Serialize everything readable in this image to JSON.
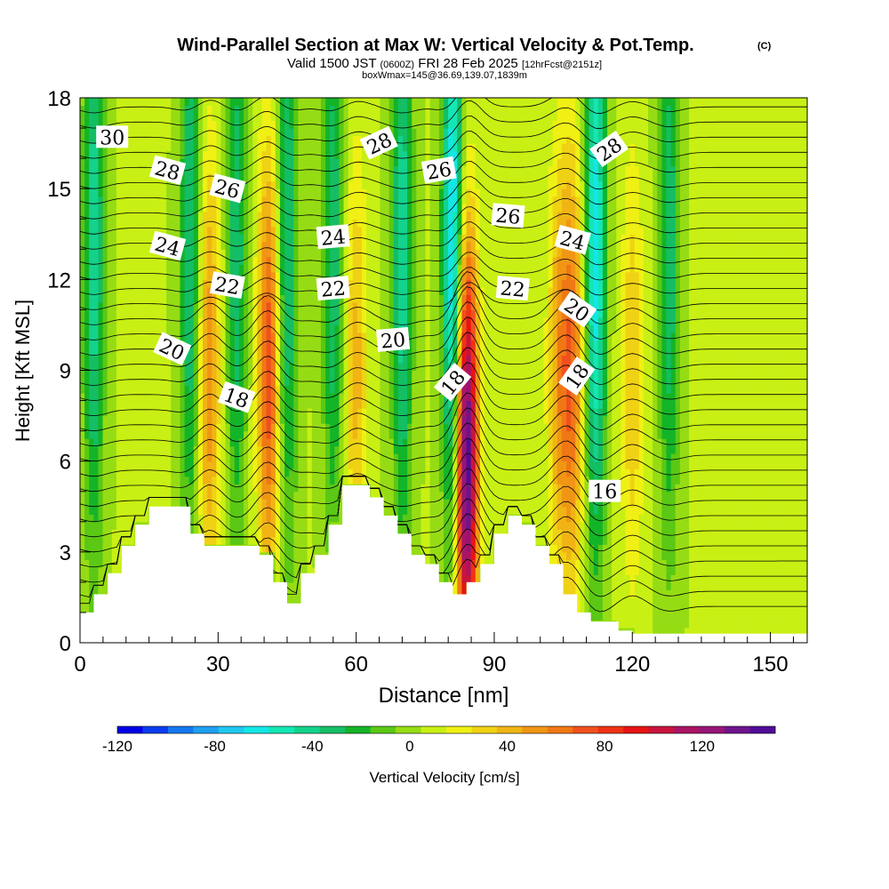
{
  "chart_data": {
    "type": "heatmap",
    "title": "Wind-Parallel Section at Max W: Vertical Velocity & Pot.Temp.",
    "title_mark": "(C)",
    "subtitle": {
      "prefix": "Valid 1500 JST",
      "utc": "(0600Z)",
      "date": "FRI 28 Feb 2025",
      "run": "[12hrFcst@2151z]"
    },
    "subtitle2": "boxWmax=145@36.69,139.07,1839m",
    "xlabel": "Distance [nm]",
    "ylabel": "Height [Kft MSL]",
    "xlim": [
      0,
      158
    ],
    "ylim": [
      0,
      18
    ],
    "x_ticks": [
      0,
      30,
      60,
      90,
      120,
      150
    ],
    "y_ticks": [
      0,
      3,
      6,
      9,
      12,
      15,
      18
    ],
    "colorbar": {
      "label": "Vertical Velocity [cm/s]",
      "range": [
        -120,
        150
      ],
      "tick_values": [
        -120,
        -80,
        -40,
        0,
        40,
        80,
        120
      ],
      "colors": [
        "#0000e6",
        "#0a3cf0",
        "#1478f0",
        "#1ea0f0",
        "#1ec8f0",
        "#14e6e6",
        "#14e6b4",
        "#14d28c",
        "#14be64",
        "#14b428",
        "#5ac814",
        "#96dc14",
        "#c8f014",
        "#f0f014",
        "#f0d214",
        "#f0b414",
        "#f09614",
        "#f07814",
        "#f0501e",
        "#f03214",
        "#e61414",
        "#c8143c",
        "#aa1464",
        "#961478",
        "#6e148c",
        "#500c96"
      ]
    },
    "updrafts": [
      {
        "x": 28,
        "peak_cm_s": 50
      },
      {
        "x": 41,
        "peak_cm_s": 70
      },
      {
        "x": 60,
        "peak_cm_s": 35
      },
      {
        "x": 84,
        "peak_cm_s": 145
      },
      {
        "x": 104,
        "peak_cm_s": 40
      },
      {
        "x": 107,
        "peak_cm_s": 55
      },
      {
        "x": 120,
        "peak_cm_s": 30
      }
    ],
    "downdrafts": [
      {
        "x": 3,
        "peak_cm_s": -50
      },
      {
        "x": 24,
        "peak_cm_s": -45
      },
      {
        "x": 34,
        "peak_cm_s": -40
      },
      {
        "x": 45,
        "peak_cm_s": -45
      },
      {
        "x": 55,
        "peak_cm_s": -40
      },
      {
        "x": 70,
        "peak_cm_s": -50
      },
      {
        "x": 81,
        "peak_cm_s": -80
      },
      {
        "x": 112,
        "peak_cm_s": -70
      },
      {
        "x": 128,
        "peak_cm_s": -40
      }
    ],
    "terrain": [
      [
        0,
        1
      ],
      [
        3,
        1
      ],
      [
        3,
        1.6
      ],
      [
        6,
        1.6
      ],
      [
        6,
        2.3
      ],
      [
        9,
        2.3
      ],
      [
        9,
        3.2
      ],
      [
        12,
        3.2
      ],
      [
        12,
        3.9
      ],
      [
        15,
        3.9
      ],
      [
        15,
        4.5
      ],
      [
        24,
        4.5
      ],
      [
        24,
        3.6
      ],
      [
        27,
        3.6
      ],
      [
        27,
        3.2
      ],
      [
        39,
        3.2
      ],
      [
        39,
        2.9
      ],
      [
        42,
        2.9
      ],
      [
        42,
        2
      ],
      [
        45,
        2
      ],
      [
        45,
        1.3
      ],
      [
        48,
        1.3
      ],
      [
        48,
        2.3
      ],
      [
        51,
        2.3
      ],
      [
        51,
        2.9
      ],
      [
        54,
        2.9
      ],
      [
        54,
        3.9
      ],
      [
        57,
        3.9
      ],
      [
        57,
        5.2
      ],
      [
        63,
        5.2
      ],
      [
        63,
        4.8
      ],
      [
        66,
        4.8
      ],
      [
        66,
        4.2
      ],
      [
        69,
        4.2
      ],
      [
        69,
        3.6
      ],
      [
        72,
        3.6
      ],
      [
        72,
        2.9
      ],
      [
        75,
        2.9
      ],
      [
        75,
        2.6
      ],
      [
        78,
        2.6
      ],
      [
        78,
        2
      ],
      [
        81,
        2
      ],
      [
        81,
        1.6
      ],
      [
        84,
        1.6
      ],
      [
        84,
        2
      ],
      [
        87,
        2
      ],
      [
        87,
        2.6
      ],
      [
        90,
        2.6
      ],
      [
        90,
        3.6
      ],
      [
        93,
        3.6
      ],
      [
        93,
        4.2
      ],
      [
        96,
        4.2
      ],
      [
        96,
        3.9
      ],
      [
        99,
        3.9
      ],
      [
        99,
        3.2
      ],
      [
        102,
        3.2
      ],
      [
        102,
        2.6
      ],
      [
        105,
        2.6
      ],
      [
        105,
        1.6
      ],
      [
        108,
        1.6
      ],
      [
        108,
        1
      ],
      [
        111,
        1
      ],
      [
        111,
        0.7
      ],
      [
        117,
        0.7
      ],
      [
        117,
        0.4
      ],
      [
        120,
        0.4
      ],
      [
        120,
        0.3
      ],
      [
        158,
        0.3
      ]
    ],
    "contour_labels": [
      {
        "text": "30",
        "x": 7,
        "y": 16.7,
        "angle": 0
      },
      {
        "text": "28",
        "x": 19,
        "y": 15.6,
        "angle": 15
      },
      {
        "text": "26",
        "x": 32,
        "y": 15.0,
        "angle": 15
      },
      {
        "text": "24",
        "x": 19,
        "y": 13.1,
        "angle": 15
      },
      {
        "text": "22",
        "x": 32,
        "y": 11.8,
        "angle": 10
      },
      {
        "text": "20",
        "x": 20,
        "y": 9.7,
        "angle": 25
      },
      {
        "text": "18",
        "x": 34,
        "y": 8.1,
        "angle": 20
      },
      {
        "text": "24",
        "x": 55,
        "y": 13.4,
        "angle": -5
      },
      {
        "text": "22",
        "x": 55,
        "y": 11.7,
        "angle": -5
      },
      {
        "text": "20",
        "x": 68,
        "y": 10.0,
        "angle": -5
      },
      {
        "text": "28",
        "x": 65,
        "y": 16.5,
        "angle": -25
      },
      {
        "text": "26",
        "x": 78,
        "y": 15.6,
        "angle": -10
      },
      {
        "text": "18",
        "x": 81,
        "y": 8.6,
        "angle": -50
      },
      {
        "text": "26",
        "x": 93,
        "y": 14.1,
        "angle": 5
      },
      {
        "text": "22",
        "x": 94,
        "y": 11.7,
        "angle": 5
      },
      {
        "text": "24",
        "x": 107,
        "y": 13.3,
        "angle": 15
      },
      {
        "text": "20",
        "x": 108,
        "y": 11.0,
        "angle": 35
      },
      {
        "text": "18",
        "x": 108,
        "y": 8.8,
        "angle": -55
      },
      {
        "text": "28",
        "x": 115,
        "y": 16.3,
        "angle": -35
      },
      {
        "text": "16",
        "x": 114,
        "y": 5.0,
        "angle": 0
      }
    ]
  }
}
